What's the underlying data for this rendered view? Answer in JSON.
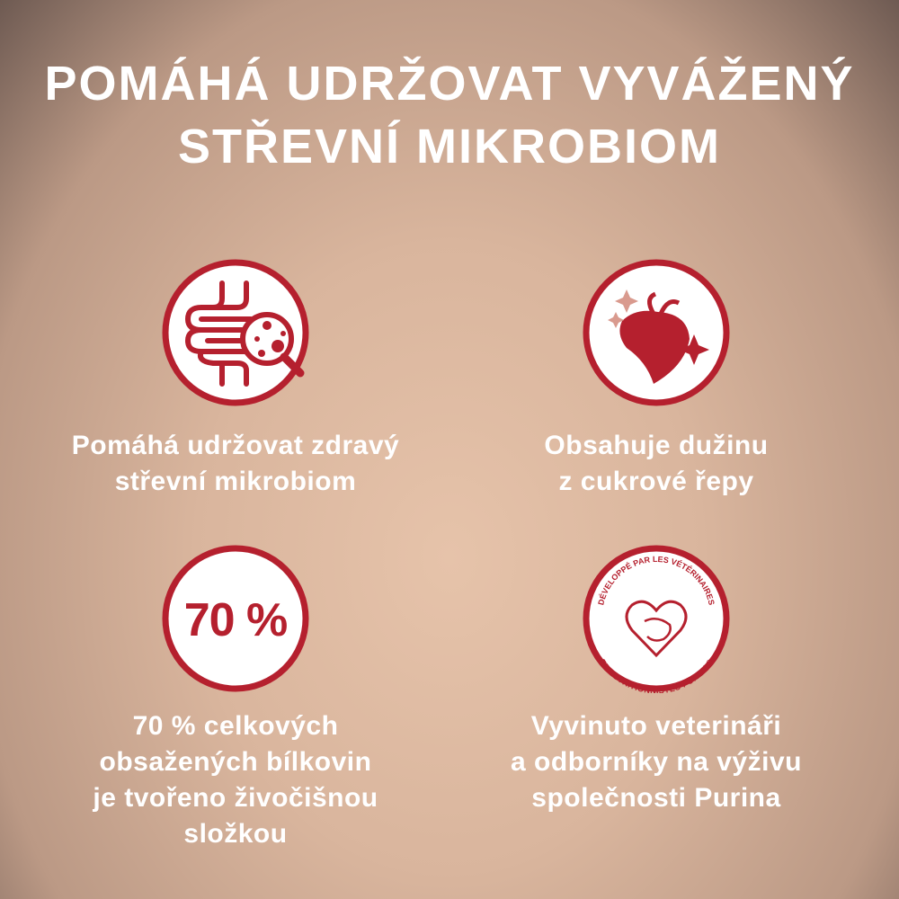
{
  "title": {
    "line1": "POMÁHÁ UDRŽOVAT VYVÁŽENÝ",
    "line2": "STŘEVNÍ MIKROBIOM"
  },
  "colors": {
    "accent": "#b5202e",
    "text": "#ffffff"
  },
  "features": [
    {
      "icon": "intestine-magnifier-icon",
      "lines": [
        "Pomáhá udržovat zdravý",
        "střevní mikrobiom"
      ]
    },
    {
      "icon": "sugar-beet-icon",
      "lines": [
        "Obsahuje dužinu",
        "z cukrové řepy"
      ]
    },
    {
      "icon": "percent-badge-icon",
      "badge": "70 %",
      "lines": [
        "70 % celkových",
        "obsažených bílkovin",
        "je tvořeno živočišnou",
        "složkou"
      ]
    },
    {
      "icon": "vet-heart-seal-icon",
      "seal_top": "DÉVELOPPÉ PAR LES VÉTÉRINAIRES",
      "seal_bottom": "ET NUTRITIONNISTES PURINA®",
      "lines": [
        "Vyvinuto veterináři",
        "a odborníky na výživu",
        "společnosti Purina"
      ]
    }
  ]
}
